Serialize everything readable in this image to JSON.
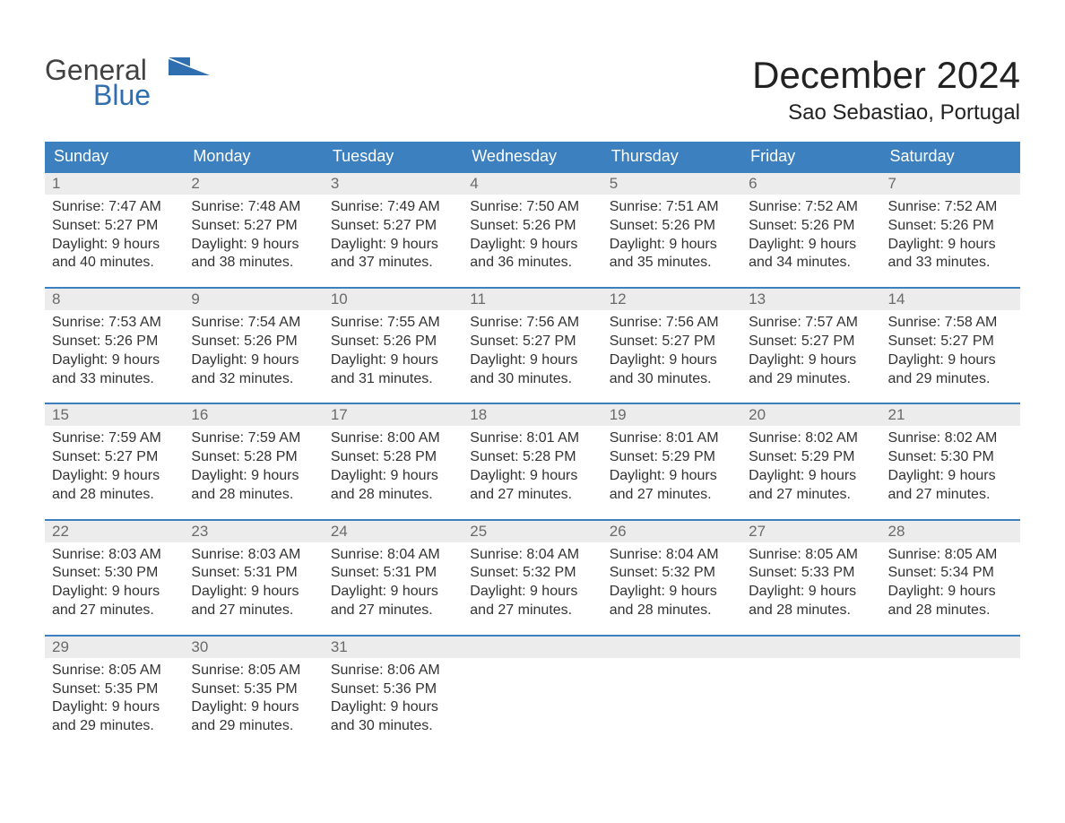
{
  "brand": {
    "text1": "General",
    "text2": "Blue"
  },
  "colors": {
    "header_bg": "#3c80c0",
    "daynum_bg": "#ececec",
    "week_border": "#3c80c0",
    "brand_gray": "#424242",
    "brand_blue": "#2f6fb0",
    "text": "#333333",
    "daynum_text": "#6a6a6a",
    "background": "#ffffff"
  },
  "title": "December 2024",
  "location": "Sao Sebastiao, Portugal",
  "days_of_week": [
    "Sunday",
    "Monday",
    "Tuesday",
    "Wednesday",
    "Thursday",
    "Friday",
    "Saturday"
  ],
  "weeks": [
    [
      {
        "n": "1",
        "sunrise": "Sunrise: 7:47 AM",
        "sunset": "Sunset: 5:27 PM",
        "d1": "Daylight: 9 hours",
        "d2": "and 40 minutes."
      },
      {
        "n": "2",
        "sunrise": "Sunrise: 7:48 AM",
        "sunset": "Sunset: 5:27 PM",
        "d1": "Daylight: 9 hours",
        "d2": "and 38 minutes."
      },
      {
        "n": "3",
        "sunrise": "Sunrise: 7:49 AM",
        "sunset": "Sunset: 5:27 PM",
        "d1": "Daylight: 9 hours",
        "d2": "and 37 minutes."
      },
      {
        "n": "4",
        "sunrise": "Sunrise: 7:50 AM",
        "sunset": "Sunset: 5:26 PM",
        "d1": "Daylight: 9 hours",
        "d2": "and 36 minutes."
      },
      {
        "n": "5",
        "sunrise": "Sunrise: 7:51 AM",
        "sunset": "Sunset: 5:26 PM",
        "d1": "Daylight: 9 hours",
        "d2": "and 35 minutes."
      },
      {
        "n": "6",
        "sunrise": "Sunrise: 7:52 AM",
        "sunset": "Sunset: 5:26 PM",
        "d1": "Daylight: 9 hours",
        "d2": "and 34 minutes."
      },
      {
        "n": "7",
        "sunrise": "Sunrise: 7:52 AM",
        "sunset": "Sunset: 5:26 PM",
        "d1": "Daylight: 9 hours",
        "d2": "and 33 minutes."
      }
    ],
    [
      {
        "n": "8",
        "sunrise": "Sunrise: 7:53 AM",
        "sunset": "Sunset: 5:26 PM",
        "d1": "Daylight: 9 hours",
        "d2": "and 33 minutes."
      },
      {
        "n": "9",
        "sunrise": "Sunrise: 7:54 AM",
        "sunset": "Sunset: 5:26 PM",
        "d1": "Daylight: 9 hours",
        "d2": "and 32 minutes."
      },
      {
        "n": "10",
        "sunrise": "Sunrise: 7:55 AM",
        "sunset": "Sunset: 5:26 PM",
        "d1": "Daylight: 9 hours",
        "d2": "and 31 minutes."
      },
      {
        "n": "11",
        "sunrise": "Sunrise: 7:56 AM",
        "sunset": "Sunset: 5:27 PM",
        "d1": "Daylight: 9 hours",
        "d2": "and 30 minutes."
      },
      {
        "n": "12",
        "sunrise": "Sunrise: 7:56 AM",
        "sunset": "Sunset: 5:27 PM",
        "d1": "Daylight: 9 hours",
        "d2": "and 30 minutes."
      },
      {
        "n": "13",
        "sunrise": "Sunrise: 7:57 AM",
        "sunset": "Sunset: 5:27 PM",
        "d1": "Daylight: 9 hours",
        "d2": "and 29 minutes."
      },
      {
        "n": "14",
        "sunrise": "Sunrise: 7:58 AM",
        "sunset": "Sunset: 5:27 PM",
        "d1": "Daylight: 9 hours",
        "d2": "and 29 minutes."
      }
    ],
    [
      {
        "n": "15",
        "sunrise": "Sunrise: 7:59 AM",
        "sunset": "Sunset: 5:27 PM",
        "d1": "Daylight: 9 hours",
        "d2": "and 28 minutes."
      },
      {
        "n": "16",
        "sunrise": "Sunrise: 7:59 AM",
        "sunset": "Sunset: 5:28 PM",
        "d1": "Daylight: 9 hours",
        "d2": "and 28 minutes."
      },
      {
        "n": "17",
        "sunrise": "Sunrise: 8:00 AM",
        "sunset": "Sunset: 5:28 PM",
        "d1": "Daylight: 9 hours",
        "d2": "and 28 minutes."
      },
      {
        "n": "18",
        "sunrise": "Sunrise: 8:01 AM",
        "sunset": "Sunset: 5:28 PM",
        "d1": "Daylight: 9 hours",
        "d2": "and 27 minutes."
      },
      {
        "n": "19",
        "sunrise": "Sunrise: 8:01 AM",
        "sunset": "Sunset: 5:29 PM",
        "d1": "Daylight: 9 hours",
        "d2": "and 27 minutes."
      },
      {
        "n": "20",
        "sunrise": "Sunrise: 8:02 AM",
        "sunset": "Sunset: 5:29 PM",
        "d1": "Daylight: 9 hours",
        "d2": "and 27 minutes."
      },
      {
        "n": "21",
        "sunrise": "Sunrise: 8:02 AM",
        "sunset": "Sunset: 5:30 PM",
        "d1": "Daylight: 9 hours",
        "d2": "and 27 minutes."
      }
    ],
    [
      {
        "n": "22",
        "sunrise": "Sunrise: 8:03 AM",
        "sunset": "Sunset: 5:30 PM",
        "d1": "Daylight: 9 hours",
        "d2": "and 27 minutes."
      },
      {
        "n": "23",
        "sunrise": "Sunrise: 8:03 AM",
        "sunset": "Sunset: 5:31 PM",
        "d1": "Daylight: 9 hours",
        "d2": "and 27 minutes."
      },
      {
        "n": "24",
        "sunrise": "Sunrise: 8:04 AM",
        "sunset": "Sunset: 5:31 PM",
        "d1": "Daylight: 9 hours",
        "d2": "and 27 minutes."
      },
      {
        "n": "25",
        "sunrise": "Sunrise: 8:04 AM",
        "sunset": "Sunset: 5:32 PM",
        "d1": "Daylight: 9 hours",
        "d2": "and 27 minutes."
      },
      {
        "n": "26",
        "sunrise": "Sunrise: 8:04 AM",
        "sunset": "Sunset: 5:32 PM",
        "d1": "Daylight: 9 hours",
        "d2": "and 28 minutes."
      },
      {
        "n": "27",
        "sunrise": "Sunrise: 8:05 AM",
        "sunset": "Sunset: 5:33 PM",
        "d1": "Daylight: 9 hours",
        "d2": "and 28 minutes."
      },
      {
        "n": "28",
        "sunrise": "Sunrise: 8:05 AM",
        "sunset": "Sunset: 5:34 PM",
        "d1": "Daylight: 9 hours",
        "d2": "and 28 minutes."
      }
    ],
    [
      {
        "n": "29",
        "sunrise": "Sunrise: 8:05 AM",
        "sunset": "Sunset: 5:35 PM",
        "d1": "Daylight: 9 hours",
        "d2": "and 29 minutes."
      },
      {
        "n": "30",
        "sunrise": "Sunrise: 8:05 AM",
        "sunset": "Sunset: 5:35 PM",
        "d1": "Daylight: 9 hours",
        "d2": "and 29 minutes."
      },
      {
        "n": "31",
        "sunrise": "Sunrise: 8:06 AM",
        "sunset": "Sunset: 5:36 PM",
        "d1": "Daylight: 9 hours",
        "d2": "and 30 minutes."
      },
      null,
      null,
      null,
      null
    ]
  ]
}
